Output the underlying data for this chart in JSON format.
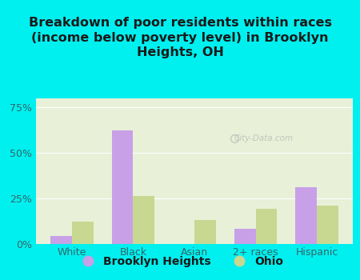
{
  "title": "Breakdown of poor residents within races\n(income below poverty level) in Brooklyn\nHeights, OH",
  "categories": [
    "White",
    "Black",
    "Asian",
    "2+ races",
    "Hispanic"
  ],
  "brooklyn_heights": [
    4,
    62,
    0,
    8,
    31
  ],
  "ohio": [
    12,
    26,
    13,
    19,
    21
  ],
  "brooklyn_color": "#c8a0e8",
  "ohio_color": "#c8d890",
  "background_outer": "#00f0f0",
  "background_inner": "#e8f0d8",
  "yticks": [
    0,
    25,
    50,
    75
  ],
  "ylim": [
    0,
    80
  ],
  "bar_width": 0.35,
  "title_fontsize": 11.5,
  "tick_fontsize": 9,
  "legend_fontsize": 10,
  "title_color": "#1a1a1a",
  "tick_color": "#336666",
  "watermark": "City-Data.com"
}
